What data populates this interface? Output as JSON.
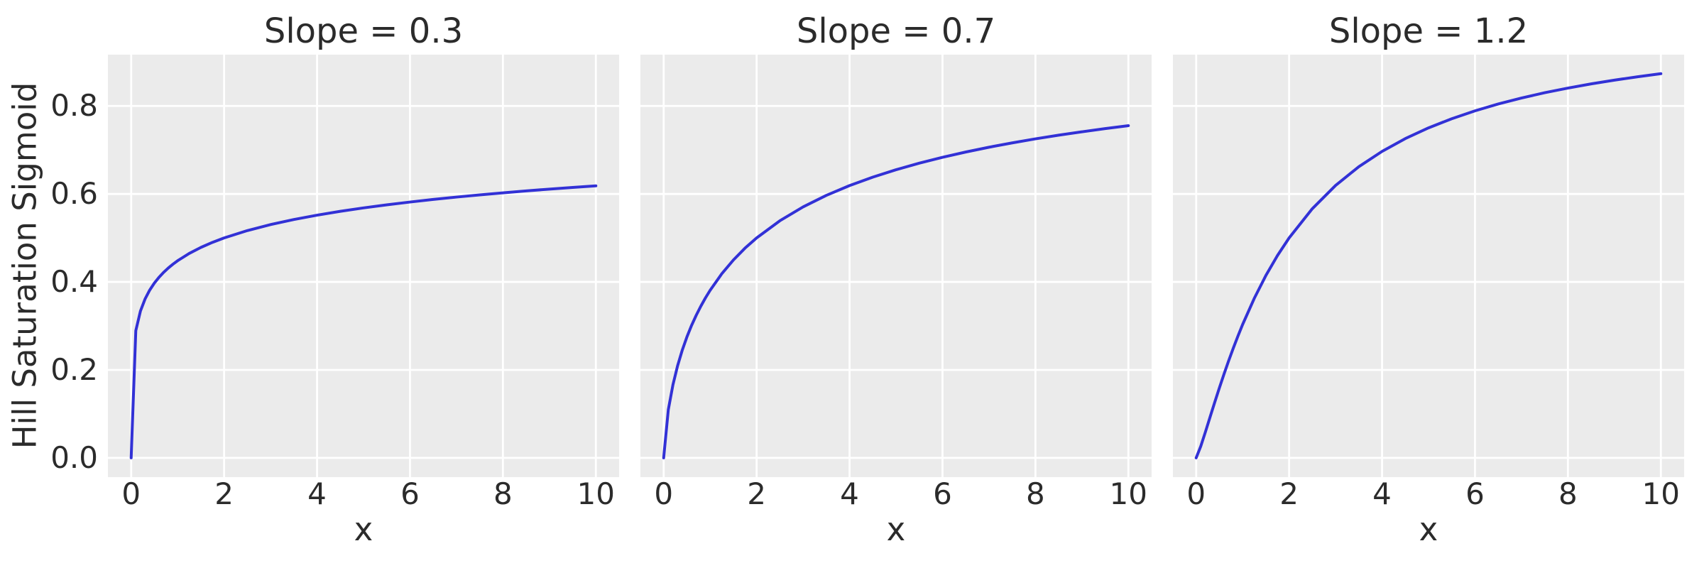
{
  "chart_data": {
    "type": "line",
    "layout": "1x3_shared_y",
    "xlabel": "x",
    "ylabel": "Hill Saturation Sigmoid",
    "xlim": [
      -0.5,
      10.5
    ],
    "ylim": [
      -0.0437,
      0.9166
    ],
    "xticks": [
      0,
      2,
      4,
      6,
      8,
      10
    ],
    "ytick_labels": [
      "0.0",
      "0.2",
      "0.4",
      "0.6",
      "0.8"
    ],
    "grid": true,
    "colors": {
      "line": "#3231d6",
      "axes_background": "#ebebeb",
      "gridline": "#ffffff",
      "figure_background": "#ffffff",
      "text": "#2b2b2b"
    },
    "x": [
      0,
      0.1,
      0.2,
      0.3,
      0.4,
      0.5,
      0.6,
      0.7,
      0.8,
      0.9,
      1,
      1.25,
      1.5,
      1.75,
      2,
      2.5,
      3,
      3.5,
      4,
      4.5,
      5,
      5.5,
      6,
      6.5,
      7,
      7.5,
      8,
      8.5,
      9,
      9.5,
      10
    ],
    "subplots": [
      {
        "title": "Slope = 0.3",
        "y": [
          0,
          0.2893,
          0.3339,
          0.3614,
          0.3816,
          0.3975,
          0.4107,
          0.4219,
          0.4317,
          0.4404,
          0.4482,
          0.4648,
          0.4784,
          0.49,
          0.5,
          0.5167,
          0.5304,
          0.5419,
          0.5518,
          0.5605,
          0.5683,
          0.5753,
          0.5816,
          0.5875,
          0.5929,
          0.5978,
          0.6025,
          0.6069,
          0.611,
          0.6148,
          0.6184
        ]
      },
      {
        "title": "Slope = 0.7",
        "y": [
          0,
          0.1094,
          0.1663,
          0.2095,
          0.2448,
          0.2748,
          0.301,
          0.3241,
          0.3449,
          0.3638,
          0.381,
          0.4185,
          0.4498,
          0.4767,
          0.5,
          0.539,
          0.5705,
          0.5967,
          0.619,
          0.6382,
          0.655,
          0.67,
          0.6833,
          0.6953,
          0.7062,
          0.7161,
          0.7252,
          0.7336,
          0.7413,
          0.7485,
          0.7552
        ]
      },
      {
        "title": "Slope = 1.2",
        "y": [
          0,
          0.0267,
          0.0593,
          0.0931,
          0.1266,
          0.1593,
          0.1908,
          0.221,
          0.2498,
          0.2772,
          0.3033,
          0.3626,
          0.4146,
          0.46,
          0.5,
          0.5665,
          0.6193,
          0.6619,
          0.6967,
          0.7258,
          0.7502,
          0.771,
          0.7889,
          0.8045,
          0.8181,
          0.8301,
          0.8407,
          0.8502,
          0.8587,
          0.8664,
          0.8734
        ]
      }
    ]
  }
}
